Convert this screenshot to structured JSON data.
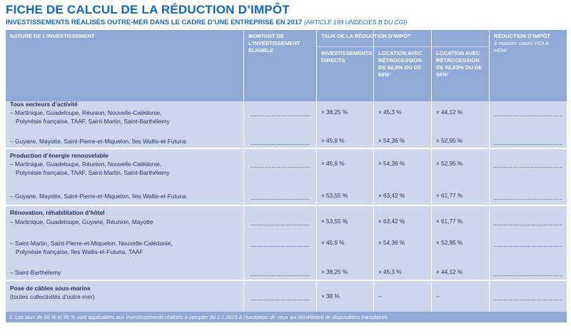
{
  "header": {
    "title": "FICHE DE CALCUL DE LA RÉDUCTION D’IMPÔT",
    "subtitle": "INVESTISSEMENTS RÉALISÉS OUTRE-MER DANS LE CADRE D’UNE ENTREPRISE EN 2017",
    "reference": "(ARTICLE 199 UNDECIES B DU CGI)"
  },
  "columns": {
    "nature": "NATURE DE L’INVESTISSEMENT",
    "montant": "MONTANT DE L’INVESTISSEMENT ÉLIGIBLE",
    "taux": "TAUX DE LA RÉDUCTION D’IMPÔT",
    "directs": "INVESTISSEMENTS DIRECTS",
    "location_625": "LOCATION AVEC RÉTROCESSION DE 62,5% OU DE 66%¹",
    "location_5263": "LOCATION AVEC RÉTROCESSION DE 52,63% OU DE 56%¹",
    "reduction": "RÉDUCTION D’IMPÔT",
    "reduction_note": "à reporter cases HDI à HDW"
  },
  "sections": [
    {
      "title": "Tous secteurs d’activité",
      "rows": [
        {
          "line1": "– Martinique, Guadeloupe, Réunion, Nouvelle-Calédonie,",
          "line2": "Polynésie française, TAAF, Saint-Martin, Saint-Barthélemy",
          "directs": "× 38,25 %",
          "loc625": "× 45,3 %",
          "loc5263": "× 44,12 %"
        },
        {
          "line1": "– Guyane, Mayotte, Saint-Pierre-et-Miquelon, îles Wallis-et-Futuna",
          "line2": "",
          "directs": "× 45,9 %",
          "loc625": "× 54,36 %",
          "loc5263": "× 52,95 %"
        }
      ]
    },
    {
      "title": "Production d’énergie renouvelable",
      "rows": [
        {
          "line1": "– Martinique, Guadeloupe, Réunion, Nouvelle-Calédonie,",
          "line2": "Polynésie française, TAAF, Saint-Martin, Saint-Barthélemy",
          "directs": "× 45,9 %",
          "loc625": "× 54,36 %",
          "loc5263": "× 52,95 %"
        },
        {
          "line1": "– Guyane, Mayotte, Saint-Pierre-et-Miquelon, îles Wallis-et-Futuna",
          "line2": "",
          "directs": "× 53,55 %",
          "loc625": "× 63,42 %",
          "loc5263": "× 61,77 %"
        }
      ]
    },
    {
      "title": "Rénovation, réhabilitation d’hôtel",
      "rows": [
        {
          "line1": "– Martinique, Guadeloupe, Guyane, Réunion, Mayotte",
          "line2": "",
          "directs": "× 53,55 %",
          "loc625": "× 63,42 %",
          "loc5263": "× 61,77 %"
        },
        {
          "line1": "– Saint-Martin, Saint-Pierre-et-Miquelon, Nouvelle-Calédonie,",
          "line2": "Polynésie française, îles Wallis-et-Futuna, TAAF",
          "directs": "× 45,9 %",
          "loc625": "× 54,36 %",
          "loc5263": "× 52,95 %"
        },
        {
          "line1": "– Saint-Barthélemy",
          "line2": "",
          "directs": "× 38,25 %",
          "loc625": "× 45,3 %",
          "loc5263": "× 44,12 %"
        }
      ]
    },
    {
      "title": "Pose de câbles sous-marins",
      "rows": [
        {
          "line1": "(toutes collectivités d’outre-mer)",
          "line2": "",
          "directs": "× 38 %",
          "loc625": "–",
          "loc5263": "–"
        }
      ]
    }
  ],
  "footnote": "1. Les taux de 66 % et 56 % sont applicables aux investissements réalisés à compter du 1.1.2015 à l’exception de ceux qui bénéficient de dispositions transitoires."
}
